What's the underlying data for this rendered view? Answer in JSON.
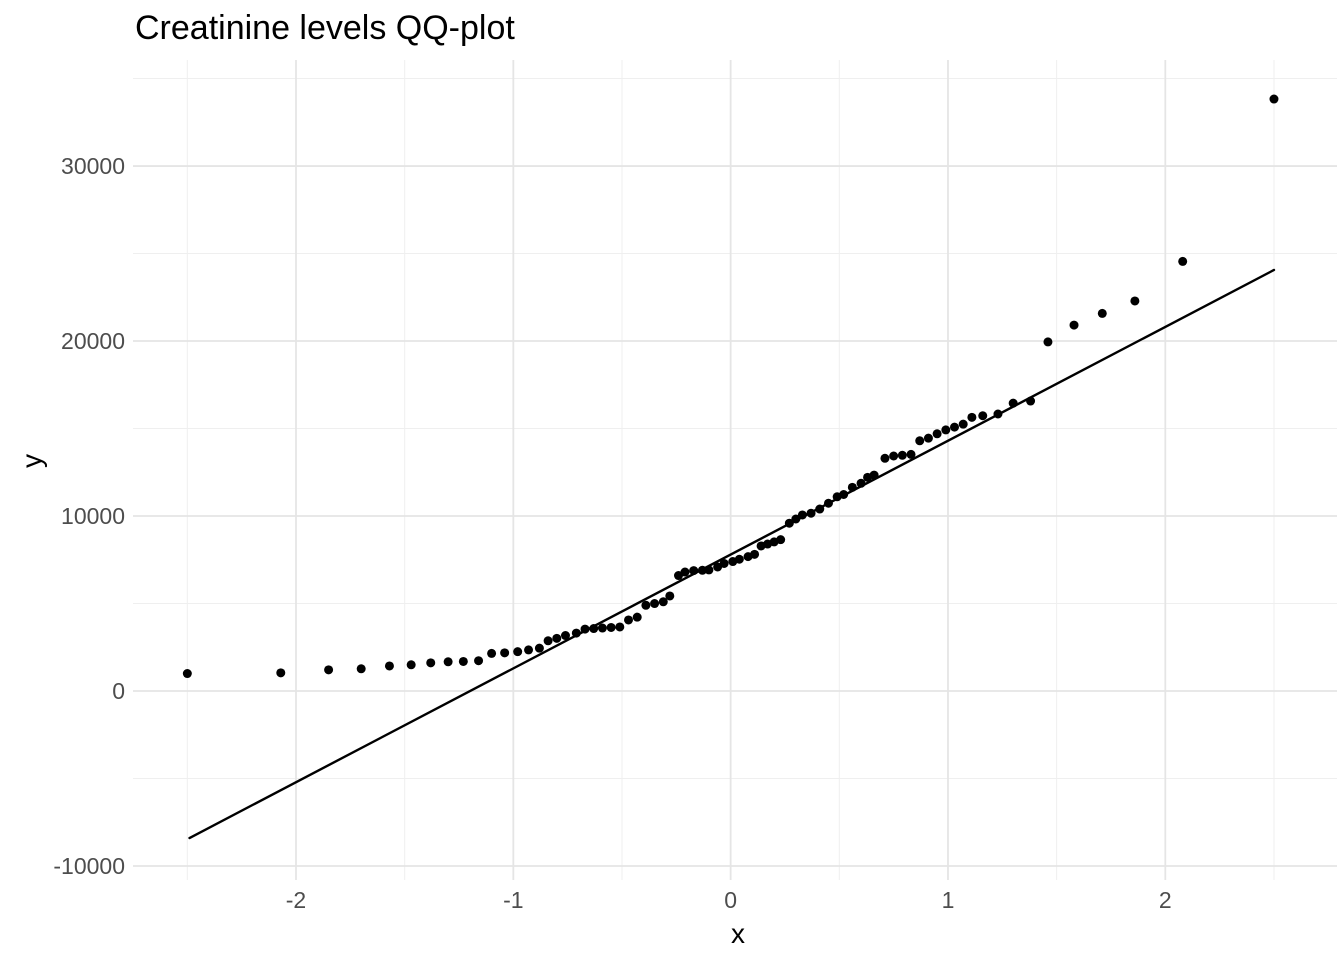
{
  "chart_data": {
    "type": "scatter",
    "title": "Creatinine levels QQ-plot",
    "xlabel": "x",
    "ylabel": "y",
    "xlim": [
      -2.75,
      2.79
    ],
    "ylim": [
      -10800,
      36060
    ],
    "x_major_ticks": [
      -2,
      -1,
      0,
      1,
      2
    ],
    "x_minor_ticks": [
      -2.5,
      -1.5,
      -0.5,
      0.5,
      1.5,
      2.5
    ],
    "y_major_ticks": [
      -10000,
      0,
      10000,
      20000,
      30000
    ],
    "y_minor_ticks": [
      -5000,
      5000,
      15000,
      25000,
      35000
    ],
    "x_tick_labels": [
      "-2",
      "-1",
      "0",
      "1",
      "2"
    ],
    "y_tick_labels": [
      "-10000",
      "0",
      "10000",
      "20000",
      "30000"
    ],
    "grid": true,
    "legend_position": "none",
    "qq_line": {
      "x1": -2.49,
      "y1": -8400,
      "x2": 2.5,
      "y2": 24060
    },
    "points": [
      [
        -2.5,
        1000
      ],
      [
        -2.07,
        1040
      ],
      [
        -1.85,
        1210
      ],
      [
        -1.7,
        1270
      ],
      [
        -1.57,
        1430
      ],
      [
        -1.47,
        1500
      ],
      [
        -1.38,
        1610
      ],
      [
        -1.3,
        1670
      ],
      [
        -1.23,
        1690
      ],
      [
        -1.16,
        1730
      ],
      [
        -1.1,
        2150
      ],
      [
        -1.04,
        2180
      ],
      [
        -0.98,
        2250
      ],
      [
        -0.93,
        2350
      ],
      [
        -0.88,
        2450
      ],
      [
        -0.84,
        2870
      ],
      [
        -0.8,
        3010
      ],
      [
        -0.76,
        3170
      ],
      [
        -0.71,
        3310
      ],
      [
        -0.67,
        3540
      ],
      [
        -0.63,
        3570
      ],
      [
        -0.59,
        3600
      ],
      [
        -0.55,
        3630
      ],
      [
        -0.51,
        3660
      ],
      [
        -0.47,
        4060
      ],
      [
        -0.43,
        4220
      ],
      [
        -0.39,
        4900
      ],
      [
        -0.35,
        5000
      ],
      [
        -0.31,
        5100
      ],
      [
        -0.28,
        5430
      ],
      [
        -0.24,
        6600
      ],
      [
        -0.21,
        6800
      ],
      [
        -0.17,
        6880
      ],
      [
        -0.13,
        6900
      ],
      [
        -0.1,
        6920
      ],
      [
        -0.06,
        7090
      ],
      [
        -0.03,
        7290
      ],
      [
        0.01,
        7400
      ],
      [
        0.04,
        7530
      ],
      [
        0.08,
        7680
      ],
      [
        0.11,
        7810
      ],
      [
        0.14,
        8290
      ],
      [
        0.17,
        8400
      ],
      [
        0.2,
        8520
      ],
      [
        0.23,
        8650
      ],
      [
        0.27,
        9590
      ],
      [
        0.3,
        9830
      ],
      [
        0.33,
        10060
      ],
      [
        0.37,
        10160
      ],
      [
        0.41,
        10400
      ],
      [
        0.45,
        10730
      ],
      [
        0.49,
        11100
      ],
      [
        0.52,
        11230
      ],
      [
        0.56,
        11640
      ],
      [
        0.6,
        11870
      ],
      [
        0.63,
        12210
      ],
      [
        0.66,
        12340
      ],
      [
        0.71,
        13300
      ],
      [
        0.75,
        13430
      ],
      [
        0.79,
        13470
      ],
      [
        0.83,
        13520
      ],
      [
        0.87,
        14300
      ],
      [
        0.91,
        14450
      ],
      [
        0.95,
        14700
      ],
      [
        0.99,
        14920
      ],
      [
        1.03,
        15080
      ],
      [
        1.07,
        15250
      ],
      [
        1.11,
        15640
      ],
      [
        1.16,
        15730
      ],
      [
        1.23,
        15830
      ],
      [
        1.3,
        16450
      ],
      [
        1.38,
        16570
      ],
      [
        1.46,
        19950
      ],
      [
        1.58,
        20910
      ],
      [
        1.71,
        21580
      ],
      [
        1.86,
        22290
      ],
      [
        2.08,
        24550
      ],
      [
        2.5,
        33830
      ]
    ],
    "colors": {
      "point": "#000000",
      "line": "#000000",
      "grid_major": "#e5e5e5",
      "grid_minor": "#efefef",
      "tick_label": "#4d4d4d",
      "axis_title": "#000000",
      "title": "#000000",
      "background": "#ffffff"
    },
    "point_radius": 4.5
  }
}
